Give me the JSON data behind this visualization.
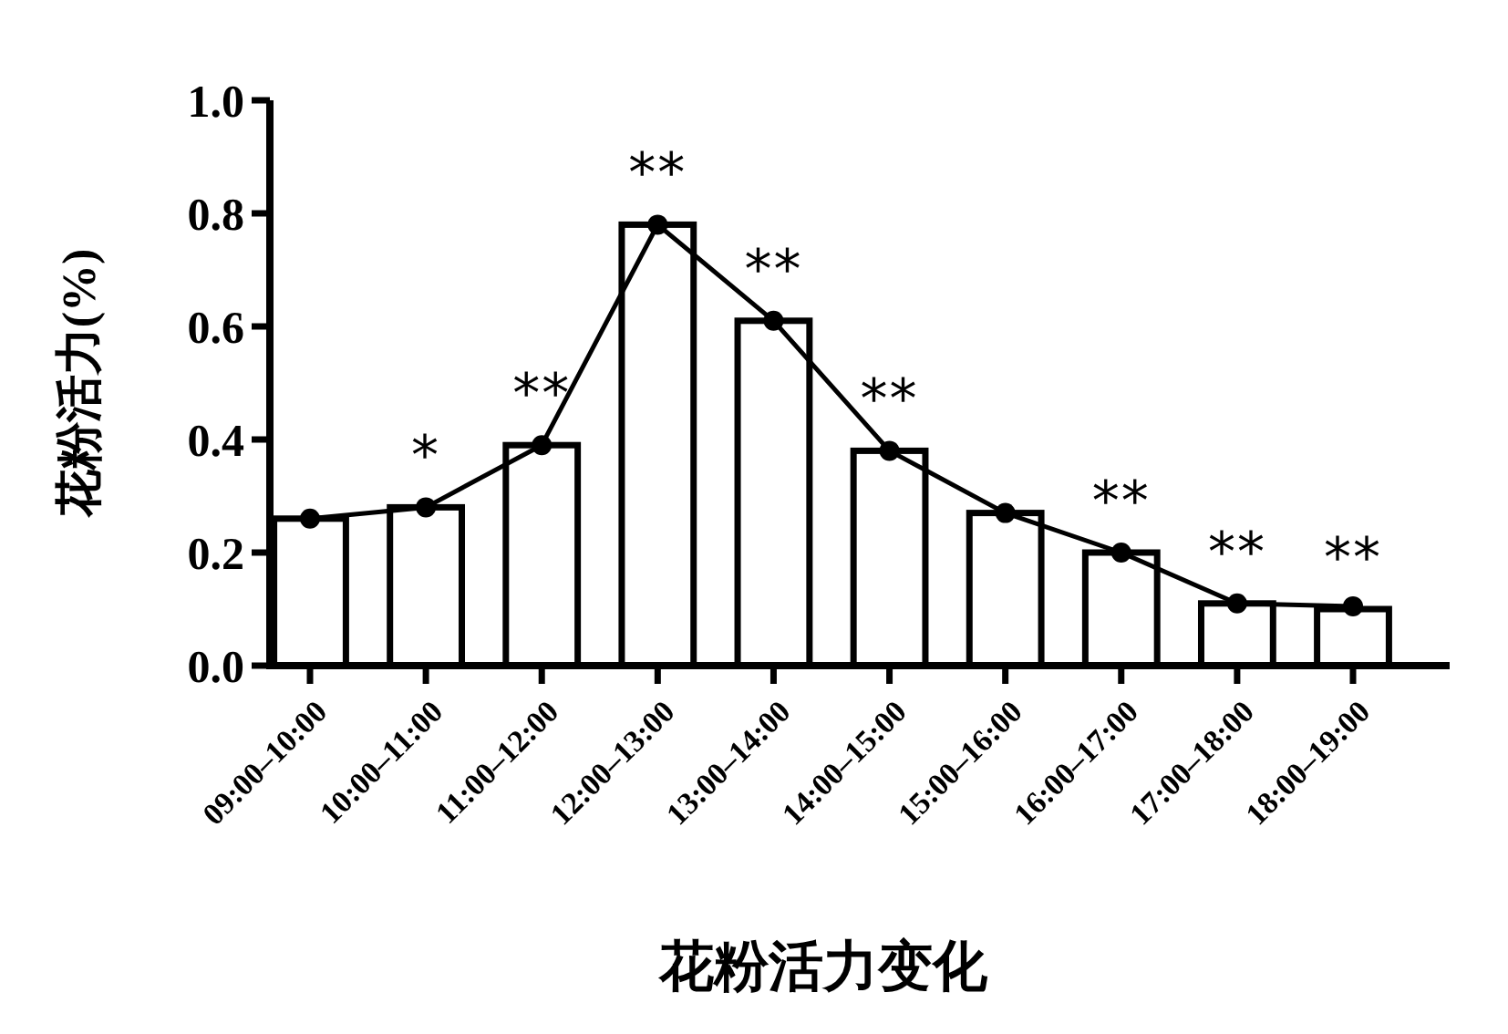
{
  "chart_data": {
    "type": "bar",
    "xlabel": "花粉活力变化",
    "ylabel": "花粉活力(%)",
    "categories": [
      "09:00–10:00",
      "10:00–11:00",
      "11:00–12:00",
      "12:00–13:00",
      "13:00–14:00",
      "14:00–15:00",
      "15:00–16:00",
      "16:00–17:00",
      "17:00–18:00",
      "18:00–19:00"
    ],
    "series": [
      {
        "color": "#ffffff",
        "values": [
          0.26,
          0.28,
          0.39,
          0.78,
          0.61,
          0.38,
          0.27,
          0.2,
          0.11,
          0.1
        ]
      },
      {
        "type": "line",
        "color": "#000000",
        "values": [
          0.26,
          0.28,
          0.39,
          0.78,
          0.61,
          0.38,
          0.27,
          0.2,
          0.11,
          0.105
        ]
      }
    ],
    "marker": "circle",
    "line_style": "solid",
    "ylim": [
      0,
      1
    ],
    "yticks": [
      {
        "value": 0,
        "label": "0.0"
      },
      0.2,
      0.4,
      0.6,
      0.8,
      {
        "value": 1,
        "label": "1.0"
      }
    ],
    "grid": false,
    "annotations": [
      {
        "text": "*",
        "x": "10:00–11:00",
        "y": 0.28
      },
      {
        "text": "**",
        "x": "11:00–12:00",
        "y": 0.39
      },
      {
        "text": "**",
        "x": "12:00–13:00",
        "y": 0.78
      },
      {
        "text": "**",
        "x": "13:00–14:00",
        "y": 0.61
      },
      {
        "text": "**",
        "x": "14:00–15:00",
        "y": 0.38
      },
      {
        "text": "**",
        "x": "16:00–17:00",
        "y": 0.2
      },
      {
        "text": "**",
        "x": "17:00–18:00",
        "y": 0.11
      },
      {
        "text": "**",
        "x": "18:00–19:00",
        "y": 0.1
      }
    ]
  }
}
